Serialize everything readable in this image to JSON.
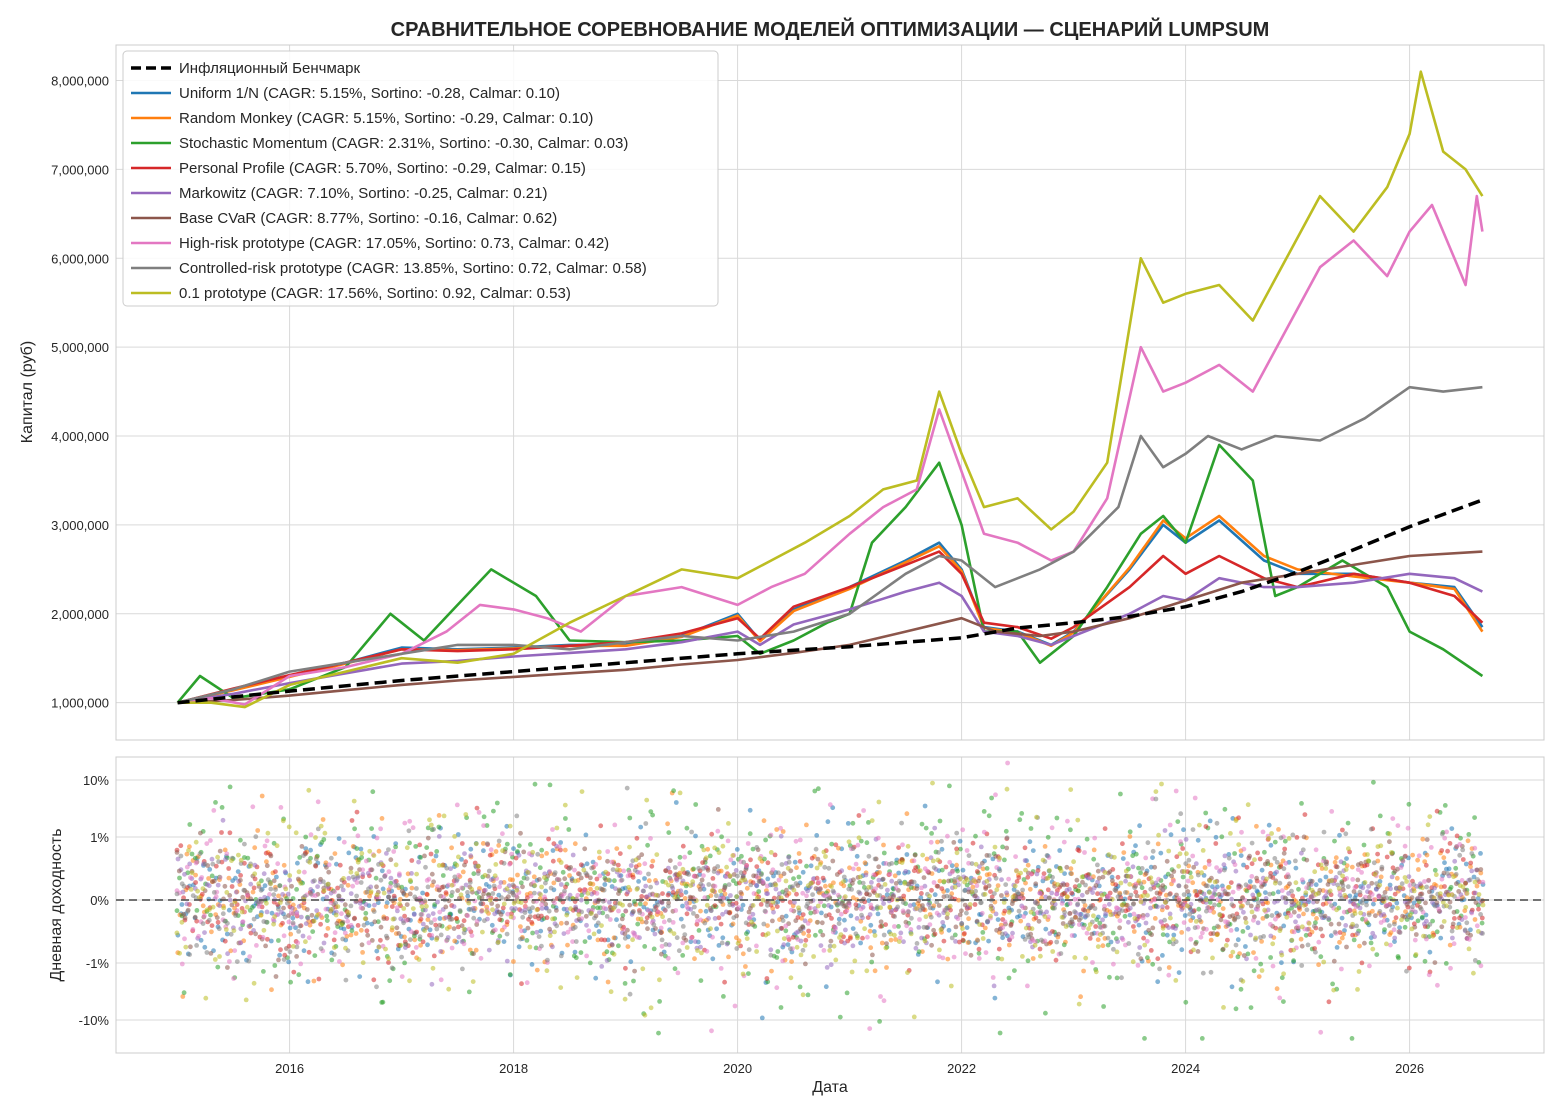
{
  "title": "СРАВНИТЕЛЬНОЕ СОРЕВНОВАНИЕ МОДЕЛЕЙ ОПТИМИЗАЦИИ — СЦЕНАРИЙ LUMPSUM",
  "colors": {
    "benchmark": "#000000",
    "uniform": "#1f77b4",
    "random": "#ff7f0e",
    "stochastic": "#2ca02c",
    "personal": "#d62728",
    "markowitz": "#9467bd",
    "cvar": "#8c564b",
    "highrisk": "#e377c2",
    "controlled": "#7f7f7f",
    "proto01": "#bcbd22",
    "grid": "#d9d9d9",
    "axes_edge": "#cccccc"
  },
  "chart_data": [
    {
      "type": "line",
      "title": "СРАВНИТЕЛЬНОЕ СОРЕВНОВАНИЕ МОДЕЛЕЙ ОПТИМИЗАЦИИ — СЦЕНАРИЙ LUMPSUM",
      "xlabel": "",
      "ylabel": "Капитал (руб)",
      "xlim": [
        2014.45,
        2027.2
      ],
      "ylim": [
        580000,
        8400000
      ],
      "xticks": [
        2016,
        2018,
        2020,
        2022,
        2024,
        2026
      ],
      "yticks": [
        1000000,
        2000000,
        3000000,
        4000000,
        5000000,
        6000000,
        7000000,
        8000000
      ],
      "ytick_labels": [
        "1,000,000",
        "2,000,000",
        "3,000,000",
        "4,000,000",
        "5,000,000",
        "6,000,000",
        "7,000,000",
        "8,000,000"
      ],
      "grid": true,
      "legend": "top-left",
      "series": [
        {
          "key": "benchmark",
          "name": "Инфляционный Бенчмарк",
          "dashed": true,
          "x": [
            2015.0,
            2016.0,
            2017.0,
            2018.0,
            2019.0,
            2020.0,
            2021.0,
            2022.0,
            2022.5,
            2023.0,
            2023.5,
            2024.0,
            2024.5,
            2025.0,
            2025.5,
            2026.0,
            2026.65
          ],
          "y": [
            1000000,
            1130000,
            1250000,
            1350000,
            1450000,
            1550000,
            1630000,
            1730000,
            1840000,
            1900000,
            1970000,
            2080000,
            2250000,
            2470000,
            2720000,
            2980000,
            3280000
          ]
        },
        {
          "key": "uniform",
          "name": "Uniform 1/N (CAGR: 5.15%, Sortino: -0.28, Calmar: 0.10)",
          "x": [
            2015.0,
            2015.5,
            2016.0,
            2016.5,
            2017.0,
            2017.5,
            2018.0,
            2018.5,
            2019.0,
            2019.5,
            2020.0,
            2020.2,
            2020.5,
            2021.0,
            2021.5,
            2021.8,
            2022.0,
            2022.2,
            2022.5,
            2022.8,
            2023.0,
            2023.5,
            2023.8,
            2024.0,
            2024.3,
            2024.7,
            2025.0,
            2025.5,
            2026.0,
            2026.4,
            2026.65
          ],
          "y": [
            1000000,
            1150000,
            1300000,
            1450000,
            1620000,
            1600000,
            1620000,
            1650000,
            1650000,
            1750000,
            2000000,
            1700000,
            2050000,
            2300000,
            2600000,
            2800000,
            2500000,
            1850000,
            1800000,
            1650000,
            1800000,
            2500000,
            3000000,
            2800000,
            3050000,
            2600000,
            2450000,
            2450000,
            2350000,
            2300000,
            1850000
          ]
        },
        {
          "key": "random",
          "name": "Random Monkey (CAGR: 5.15%, Sortino: -0.29, Calmar: 0.10)",
          "x": [
            2015.0,
            2015.5,
            2016.0,
            2016.5,
            2017.0,
            2017.5,
            2018.0,
            2018.5,
            2019.0,
            2019.5,
            2020.0,
            2020.2,
            2020.5,
            2021.0,
            2021.5,
            2021.8,
            2022.0,
            2022.2,
            2022.5,
            2022.8,
            2023.0,
            2023.5,
            2023.8,
            2024.0,
            2024.3,
            2024.7,
            2025.0,
            2025.5,
            2026.0,
            2026.4,
            2026.65
          ],
          "y": [
            1000000,
            1140000,
            1290000,
            1440000,
            1600000,
            1590000,
            1610000,
            1640000,
            1640000,
            1740000,
            1980000,
            1690000,
            2030000,
            2280000,
            2580000,
            2760000,
            2480000,
            1840000,
            1790000,
            1640000,
            1790000,
            2520000,
            3050000,
            2850000,
            3100000,
            2650000,
            2500000,
            2420000,
            2350000,
            2280000,
            1800000
          ]
        },
        {
          "key": "stochastic",
          "name": "Stochastic Momentum (CAGR: 2.31%, Sortino: -0.30, Calmar: 0.03)",
          "x": [
            2015.0,
            2015.2,
            2015.5,
            2016.0,
            2016.5,
            2016.9,
            2017.2,
            2017.5,
            2017.8,
            2018.2,
            2018.5,
            2019.0,
            2019.5,
            2020.0,
            2020.2,
            2020.5,
            2020.8,
            2021.0,
            2021.2,
            2021.5,
            2021.8,
            2022.0,
            2022.2,
            2022.5,
            2022.7,
            2023.0,
            2023.3,
            2023.6,
            2023.8,
            2024.0,
            2024.3,
            2024.6,
            2024.8,
            2025.0,
            2025.4,
            2025.8,
            2026.0,
            2026.3,
            2026.65
          ],
          "y": [
            1000000,
            1300000,
            1050000,
            1150000,
            1400000,
            2000000,
            1700000,
            2100000,
            2500000,
            2200000,
            1700000,
            1680000,
            1700000,
            1750000,
            1550000,
            1700000,
            1900000,
            2000000,
            2800000,
            3200000,
            3700000,
            3000000,
            1800000,
            1800000,
            1450000,
            1750000,
            2300000,
            2900000,
            3100000,
            2800000,
            3900000,
            3500000,
            2200000,
            2300000,
            2600000,
            2300000,
            1800000,
            1600000,
            1300000
          ]
        },
        {
          "key": "personal",
          "name": "Personal Profile (CAGR: 5.70%, Sortino: -0.29, Calmar: 0.15)",
          "x": [
            2015.0,
            2015.5,
            2016.0,
            2016.5,
            2017.0,
            2017.5,
            2018.0,
            2018.5,
            2019.0,
            2019.5,
            2020.0,
            2020.2,
            2020.5,
            2021.0,
            2021.5,
            2021.8,
            2022.0,
            2022.2,
            2022.5,
            2022.8,
            2023.0,
            2023.5,
            2023.8,
            2024.0,
            2024.3,
            2024.7,
            2025.0,
            2025.5,
            2026.0,
            2026.4,
            2026.65
          ],
          "y": [
            1000000,
            1160000,
            1310000,
            1450000,
            1600000,
            1580000,
            1600000,
            1640000,
            1680000,
            1780000,
            1950000,
            1720000,
            2080000,
            2300000,
            2550000,
            2700000,
            2450000,
            1900000,
            1850000,
            1720000,
            1850000,
            2300000,
            2650000,
            2450000,
            2650000,
            2400000,
            2300000,
            2450000,
            2350000,
            2200000,
            1900000
          ]
        },
        {
          "key": "markowitz",
          "name": "Markowitz (CAGR: 7.10%, Sortino: -0.25, Calmar: 0.21)",
          "x": [
            2015.0,
            2015.5,
            2016.0,
            2016.5,
            2017.0,
            2017.5,
            2018.0,
            2018.5,
            2019.0,
            2019.5,
            2020.0,
            2020.2,
            2020.5,
            2021.0,
            2021.5,
            2021.8,
            2022.0,
            2022.2,
            2022.5,
            2022.8,
            2023.0,
            2023.5,
            2023.8,
            2024.0,
            2024.3,
            2024.7,
            2025.0,
            2025.5,
            2026.0,
            2026.4,
            2026.65
          ],
          "y": [
            1000000,
            1100000,
            1220000,
            1330000,
            1440000,
            1470000,
            1520000,
            1560000,
            1600000,
            1680000,
            1800000,
            1650000,
            1880000,
            2050000,
            2250000,
            2350000,
            2200000,
            1800000,
            1750000,
            1650000,
            1750000,
            2000000,
            2200000,
            2150000,
            2400000,
            2300000,
            2300000,
            2350000,
            2450000,
            2400000,
            2250000
          ]
        },
        {
          "key": "cvar",
          "name": "Base CVaR (CAGR: 8.77%, Sortino: -0.16, Calmar: 0.62)",
          "x": [
            2015.0,
            2015.5,
            2016.0,
            2016.5,
            2017.0,
            2017.5,
            2018.0,
            2018.5,
            2019.0,
            2019.5,
            2020.0,
            2020.5,
            2021.0,
            2021.5,
            2022.0,
            2022.3,
            2022.7,
            2023.0,
            2023.5,
            2024.0,
            2024.5,
            2025.0,
            2025.5,
            2026.0,
            2026.65
          ],
          "y": [
            1000000,
            1030000,
            1080000,
            1140000,
            1200000,
            1250000,
            1290000,
            1330000,
            1370000,
            1430000,
            1480000,
            1560000,
            1650000,
            1800000,
            1950000,
            1800000,
            1750000,
            1800000,
            1950000,
            2150000,
            2350000,
            2450000,
            2550000,
            2650000,
            2700000
          ]
        },
        {
          "key": "highrisk",
          "name": "High-risk prototype (CAGR: 17.05%, Sortino: 0.73, Calmar: 0.42)",
          "x": [
            2015.0,
            2015.3,
            2015.6,
            2016.0,
            2016.5,
            2017.0,
            2017.4,
            2017.7,
            2018.0,
            2018.3,
            2018.6,
            2019.0,
            2019.5,
            2020.0,
            2020.3,
            2020.6,
            2021.0,
            2021.3,
            2021.6,
            2021.8,
            2022.0,
            2022.2,
            2022.5,
            2022.8,
            2023.0,
            2023.3,
            2023.6,
            2023.8,
            2024.0,
            2024.3,
            2024.6,
            2024.9,
            2025.2,
            2025.5,
            2025.8,
            2026.0,
            2026.2,
            2026.4,
            2026.5,
            2026.6,
            2026.65
          ],
          "y": [
            1000000,
            1050000,
            980000,
            1300000,
            1400000,
            1550000,
            1800000,
            2100000,
            2050000,
            1950000,
            1800000,
            2200000,
            2300000,
            2100000,
            2300000,
            2450000,
            2900000,
            3200000,
            3400000,
            4300000,
            3600000,
            2900000,
            2800000,
            2600000,
            2700000,
            3300000,
            5000000,
            4500000,
            4600000,
            4800000,
            4500000,
            5200000,
            5900000,
            6200000,
            5800000,
            6300000,
            6600000,
            6000000,
            5700000,
            6700000,
            6300000
          ]
        },
        {
          "key": "controlled",
          "name": "Controlled-risk prototype (CAGR: 13.85%, Sortino: 0.72, Calmar: 0.58)",
          "x": [
            2015.0,
            2015.5,
            2016.0,
            2016.5,
            2017.0,
            2017.5,
            2018.0,
            2018.5,
            2019.0,
            2019.5,
            2020.0,
            2020.5,
            2021.0,
            2021.5,
            2021.8,
            2022.0,
            2022.3,
            2022.7,
            2023.0,
            2023.4,
            2023.6,
            2023.8,
            2024.0,
            2024.2,
            2024.5,
            2024.8,
            2025.2,
            2025.6,
            2026.0,
            2026.3,
            2026.65
          ],
          "y": [
            1000000,
            1150000,
            1350000,
            1450000,
            1550000,
            1650000,
            1650000,
            1600000,
            1680000,
            1750000,
            1700000,
            1800000,
            2000000,
            2450000,
            2650000,
            2600000,
            2300000,
            2500000,
            2700000,
            3200000,
            4000000,
            3650000,
            3800000,
            4000000,
            3850000,
            4000000,
            3950000,
            4200000,
            4550000,
            4500000,
            4550000
          ]
        },
        {
          "key": "proto01",
          "name": "0.1 prototype (CAGR: 17.56%, Sortino: 0.92, Calmar: 0.53)",
          "x": [
            2015.0,
            2015.3,
            2015.6,
            2016.0,
            2016.5,
            2017.0,
            2017.5,
            2018.0,
            2018.5,
            2019.0,
            2019.5,
            2020.0,
            2020.3,
            2020.6,
            2021.0,
            2021.3,
            2021.6,
            2021.8,
            2022.0,
            2022.2,
            2022.5,
            2022.8,
            2023.0,
            2023.3,
            2023.6,
            2023.8,
            2024.0,
            2024.3,
            2024.6,
            2024.9,
            2025.2,
            2025.5,
            2025.8,
            2026.0,
            2026.1,
            2026.3,
            2026.5,
            2026.65
          ],
          "y": [
            1000000,
            1000000,
            950000,
            1200000,
            1350000,
            1500000,
            1450000,
            1550000,
            1900000,
            2200000,
            2500000,
            2400000,
            2600000,
            2800000,
            3100000,
            3400000,
            3500000,
            4500000,
            3800000,
            3200000,
            3300000,
            2950000,
            3150000,
            3700000,
            6000000,
            5500000,
            5600000,
            5700000,
            5300000,
            6000000,
            6700000,
            6300000,
            6800000,
            7400000,
            8100000,
            7200000,
            7000000,
            6700000
          ]
        }
      ]
    },
    {
      "type": "scatter",
      "xlabel": "Дата",
      "ylabel": "Дневная доходность",
      "xlim": [
        2014.45,
        2027.2
      ],
      "ylim": [
        -1.05,
        1.05
      ],
      "yscale": "symlog",
      "ytick_labels": [
        "10%",
        "1%",
        "0%",
        "-1%",
        "-10%"
      ],
      "reference_line": 0,
      "grid": true
    }
  ]
}
